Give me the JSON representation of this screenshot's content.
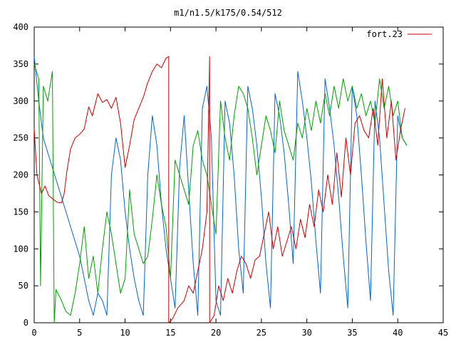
{
  "chart_data": {
    "type": "line",
    "title": "m1/n1.5/k175/0.54/512",
    "xlabel": "",
    "ylabel": "",
    "xlim": [
      0,
      45
    ],
    "ylim": [
      0,
      400
    ],
    "x_ticks": [
      "0",
      "5",
      "10",
      "15",
      "20",
      "25",
      "30",
      "35",
      "40",
      "45"
    ],
    "y_ticks": [
      "0",
      "50",
      "100",
      "150",
      "200",
      "250",
      "300",
      "350",
      "400"
    ],
    "grid": false,
    "legend_position": "top-right",
    "series": [
      {
        "name": "fort.23",
        "color": "#cc0000",
        "x": [
          0.0,
          0.3,
          0.8,
          1.2,
          1.6,
          2.0,
          2.5,
          3.0,
          3.3,
          3.6,
          4.0,
          4.5,
          5.0,
          5.5,
          6.0,
          6.4,
          7.0,
          7.5,
          8.0,
          8.5,
          9.0,
          9.5,
          10.0,
          10.5,
          11.0,
          11.5,
          12.0,
          12.5,
          13.0,
          13.5,
          14.0,
          14.5,
          14.8,
          14.8,
          15.2,
          15.8,
          16.5,
          17.0,
          17.5,
          18.0,
          18.5,
          19.0,
          19.3,
          19.3,
          19.8,
          20.3,
          20.8,
          21.3,
          21.8,
          22.3,
          22.8,
          23.3,
          23.8,
          24.3,
          24.8,
          25.3,
          25.8,
          26.3,
          26.8,
          27.3,
          27.8,
          28.3,
          28.8,
          29.3,
          29.8,
          30.3,
          30.8,
          31.3,
          31.8,
          32.3,
          32.8,
          33.3,
          33.8,
          34.3,
          34.8,
          35.3,
          35.8,
          36.3,
          36.8,
          37.3,
          37.8,
          38.3,
          38.8,
          39.3,
          39.8,
          40.3,
          40.8
        ],
        "y": [
          262,
          200,
          175,
          185,
          172,
          168,
          163,
          162,
          175,
          205,
          235,
          250,
          255,
          262,
          292,
          280,
          310,
          298,
          302,
          290,
          305,
          270,
          210,
          240,
          275,
          290,
          305,
          325,
          340,
          350,
          345,
          358,
          360,
          0,
          5,
          20,
          30,
          50,
          40,
          70,
          100,
          150,
          360,
          0,
          10,
          50,
          30,
          60,
          40,
          70,
          90,
          80,
          60,
          85,
          90,
          120,
          150,
          100,
          130,
          90,
          110,
          130,
          100,
          140,
          115,
          160,
          130,
          180,
          150,
          200,
          160,
          230,
          170,
          250,
          200,
          270,
          280,
          260,
          250,
          290,
          240,
          330,
          250,
          300,
          220,
          260,
          290
        ]
      },
      {
        "name": "",
        "color": "#00a000",
        "x": [
          0.0,
          0.5,
          0.7,
          1.0,
          1.5,
          2.0,
          2.2,
          2.4,
          3.0,
          3.5,
          4.0,
          4.5,
          5.0,
          5.5,
          6.0,
          6.5,
          7.0,
          7.5,
          8.0,
          8.5,
          9.0,
          9.5,
          10.0,
          10.5,
          11.0,
          11.5,
          12.0,
          12.5,
          13.0,
          13.5,
          14.0,
          14.5,
          15.0,
          15.5,
          16.0,
          16.5,
          17.0,
          17.5,
          18.0,
          18.5,
          19.0,
          19.5,
          20.0,
          20.5,
          21.0,
          21.5,
          22.0,
          22.5,
          23.0,
          23.5,
          24.0,
          24.5,
          25.0,
          25.5,
          26.0,
          26.5,
          27.0,
          27.5,
          28.0,
          28.5,
          29.0,
          29.5,
          30.0,
          30.5,
          31.0,
          31.5,
          32.0,
          32.5,
          33.0,
          33.5,
          34.0,
          34.5,
          35.0,
          35.5,
          36.0,
          36.5,
          37.0,
          37.5,
          38.0,
          38.5,
          39.0,
          39.5,
          40.0,
          40.5,
          41.0
        ],
        "y": [
          350,
          330,
          50,
          320,
          300,
          340,
          0,
          45,
          30,
          15,
          10,
          40,
          80,
          130,
          60,
          90,
          40,
          100,
          150,
          120,
          80,
          40,
          60,
          180,
          120,
          100,
          80,
          90,
          140,
          200,
          160,
          130,
          60,
          220,
          200,
          180,
          160,
          240,
          260,
          220,
          200,
          160,
          120,
          300,
          250,
          220,
          280,
          320,
          310,
          290,
          250,
          200,
          240,
          280,
          260,
          230,
          300,
          260,
          240,
          220,
          270,
          250,
          290,
          260,
          300,
          270,
          310,
          280,
          320,
          290,
          330,
          300,
          320,
          290,
          310,
          280,
          300,
          270,
          330,
          290,
          320,
          280,
          300,
          250,
          240
        ]
      },
      {
        "name": "",
        "color": "#0066cc",
        "x": [
          0.0,
          0.5,
          1.0,
          1.5,
          2.0,
          2.5,
          3.0,
          3.5,
          4.0,
          4.5,
          5.0,
          5.5,
          6.0,
          6.5,
          7.0,
          7.5,
          8.0,
          8.5,
          9.0,
          9.5,
          10.0,
          10.5,
          11.0,
          11.5,
          12.0,
          12.5,
          13.0,
          13.5,
          14.0,
          14.5,
          15.0,
          15.5,
          16.0,
          16.5,
          17.0,
          17.5,
          18.0,
          18.5,
          19.0,
          19.5,
          20.0,
          20.5,
          21.0,
          21.5,
          22.0,
          22.5,
          23.0,
          23.5,
          24.0,
          24.5,
          25.0,
          25.5,
          26.0,
          26.5,
          27.0,
          27.5,
          28.0,
          28.5,
          29.0,
          29.5,
          30.0,
          30.5,
          31.0,
          31.5,
          32.0,
          32.5,
          33.0,
          33.5,
          34.0,
          34.5,
          35.0,
          35.5,
          36.0,
          36.5,
          37.0,
          37.5,
          38.0,
          38.5,
          39.0,
          39.5,
          40.0,
          40.5,
          41.0
        ],
        "y": [
          360,
          300,
          250,
          230,
          210,
          190,
          170,
          150,
          130,
          110,
          90,
          60,
          30,
          10,
          40,
          30,
          10,
          200,
          250,
          220,
          150,
          100,
          60,
          30,
          10,
          200,
          280,
          240,
          160,
          100,
          60,
          20,
          210,
          280,
          180,
          80,
          10,
          290,
          320,
          250,
          30,
          10,
          300,
          270,
          200,
          100,
          40,
          320,
          290,
          240,
          170,
          80,
          20,
          310,
          280,
          230,
          160,
          80,
          340,
          300,
          250,
          190,
          110,
          40,
          330,
          290,
          240,
          170,
          90,
          20,
          320,
          280,
          200,
          110,
          30,
          300,
          250,
          160,
          70,
          10,
          280,
          250,
          240
        ]
      }
    ]
  }
}
